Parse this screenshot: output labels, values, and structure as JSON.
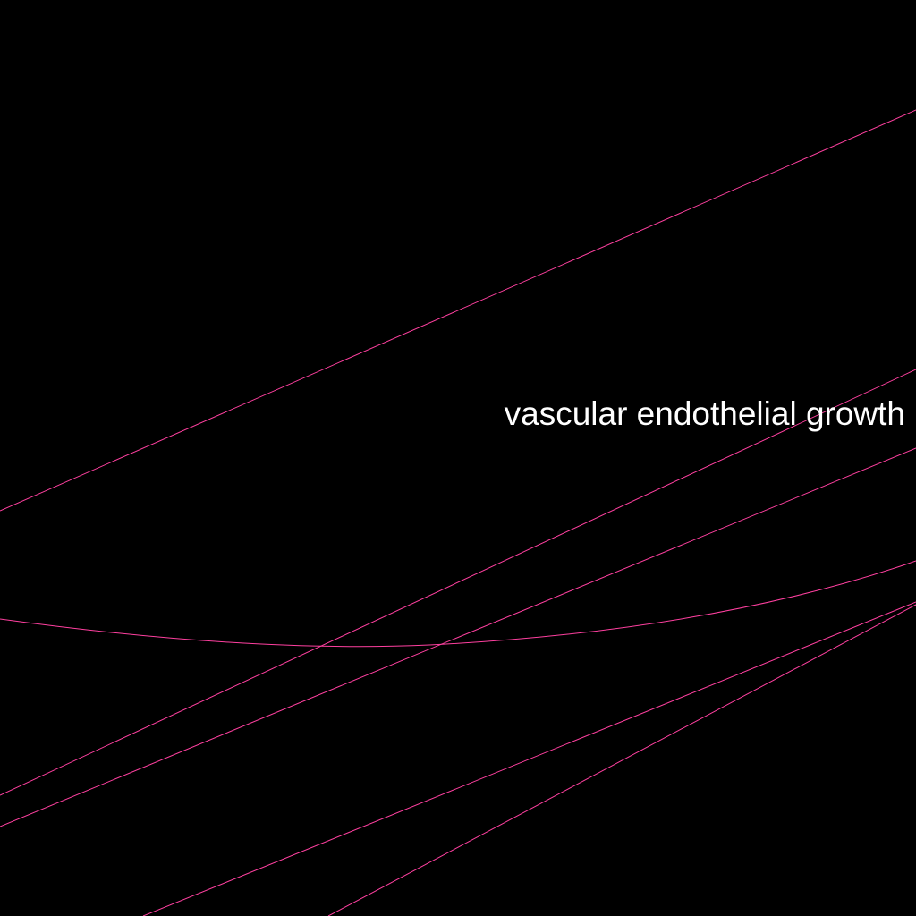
{
  "background_color": "#000000",
  "edge_color": "#ff40a0",
  "label_color": "#ffffff",
  "labels": {
    "node_label": "vascular endothelial growth"
  }
}
